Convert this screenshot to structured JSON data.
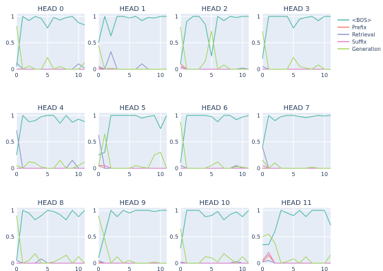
{
  "chart_data": {
    "type": "line",
    "x": [
      0,
      1,
      2,
      3,
      4,
      5,
      6,
      7,
      8,
      9,
      10,
      11
    ],
    "xticks": [
      0,
      5,
      10
    ],
    "yticks": [
      0,
      0.5,
      1
    ],
    "ytick_labels": [
      "0",
      "0.5",
      "1"
    ],
    "ylim": [
      -0.02,
      1.05
    ],
    "grid": true,
    "legend_position": "top-right",
    "series_styles": [
      {
        "name": "<BOS>",
        "color": "#4FB9A6"
      },
      {
        "name": "Prefix",
        "color": "#F0806A"
      },
      {
        "name": "Retrieval",
        "color": "#8E96C8"
      },
      {
        "name": "Suffix",
        "color": "#E680C8"
      },
      {
        "name": "Generation",
        "color": "#A6D65C"
      }
    ],
    "panels": [
      {
        "title": "HEAD 0",
        "series": [
          [
            0.05,
            1,
            0.92,
            1,
            0.96,
            0.78,
            0.98,
            0.93,
            0.98,
            1,
            0.88,
            0.84
          ],
          [
            0,
            0,
            0,
            0,
            0,
            0,
            0,
            0,
            0,
            0,
            0,
            0
          ],
          [
            0.12,
            0,
            0,
            0,
            0,
            0,
            0,
            0,
            0,
            0,
            0.1,
            0.02
          ],
          [
            0,
            0,
            0,
            0,
            0,
            0,
            0,
            0,
            0,
            0,
            0,
            0
          ],
          [
            0.82,
            0,
            0.06,
            0,
            0,
            0.22,
            0,
            0.05,
            0,
            0,
            0,
            0.12
          ]
        ]
      },
      {
        "title": "HEAD 1",
        "series": [
          [
            0.5,
            1,
            0.63,
            1,
            1,
            0.97,
            1,
            0.92,
            0.98,
            0.97,
            1,
            1
          ],
          [
            0.02,
            0,
            0,
            0,
            0,
            0,
            0,
            0,
            0,
            0,
            0,
            0
          ],
          [
            0.05,
            0,
            0.33,
            0,
            0,
            0,
            0,
            0.1,
            0,
            0,
            0,
            0
          ],
          [
            0,
            0,
            0,
            0,
            0,
            0,
            0,
            0,
            0,
            0,
            0,
            0
          ],
          [
            0.45,
            0,
            0.02,
            0,
            0,
            0,
            0,
            0,
            0,
            0,
            0,
            0
          ]
        ]
      },
      {
        "title": "HEAD 2",
        "series": [
          [
            0.1,
            0.9,
            1,
            1,
            0.85,
            0.25,
            1,
            0.92,
            1,
            0.98,
            1,
            1
          ],
          [
            0.1,
            0,
            0,
            0,
            0,
            0,
            0,
            0,
            0,
            0,
            0,
            0
          ],
          [
            0.05,
            0,
            0,
            0,
            0,
            0,
            0,
            0,
            0,
            0,
            0.02,
            0
          ],
          [
            0.02,
            0,
            0,
            0,
            0,
            0,
            0,
            0,
            0,
            0,
            0,
            0
          ],
          [
            0.8,
            0,
            0,
            0,
            0.15,
            0.72,
            0,
            0.08,
            0,
            0,
            0,
            0
          ]
        ]
      },
      {
        "title": "HEAD 3",
        "series": [
          [
            0.2,
            1,
            1,
            1,
            1,
            0.78,
            0.95,
            0.98,
            1,
            0.92,
            1,
            1
          ],
          [
            0,
            0,
            0,
            0,
            0,
            0,
            0,
            0,
            0,
            0,
            0,
            0
          ],
          [
            0.05,
            0,
            0,
            0,
            0,
            0,
            0,
            0,
            0,
            0,
            0,
            0
          ],
          [
            0,
            0,
            0,
            0,
            0,
            0,
            0,
            0,
            0,
            0,
            0,
            0
          ],
          [
            0.72,
            0,
            0,
            0,
            0,
            0.22,
            0.05,
            0.02,
            0,
            0.08,
            0,
            0
          ]
        ]
      },
      {
        "title": "HEAD 4",
        "series": [
          [
            0.25,
            1,
            0.88,
            0.9,
            0.98,
            1,
            1,
            0.85,
            1,
            0.87,
            0.93,
            0.88
          ],
          [
            0,
            0,
            0,
            0,
            0,
            0,
            0,
            0,
            0,
            0,
            0,
            0
          ],
          [
            0.72,
            0,
            0,
            0,
            0,
            0,
            0,
            0,
            0,
            0.15,
            0,
            0
          ],
          [
            0,
            0,
            0,
            0,
            0,
            0,
            0,
            0,
            0,
            0,
            0,
            0
          ],
          [
            0.05,
            0,
            0.12,
            0.1,
            0.02,
            0,
            0,
            0.15,
            0,
            0,
            0.05,
            0.12
          ]
        ]
      },
      {
        "title": "HEAD 5",
        "series": [
          [
            0.25,
            0.3,
            1,
            1,
            1,
            1,
            1,
            0.95,
            0.98,
            1,
            0.75,
            1
          ],
          [
            0.05,
            0,
            0,
            0,
            0,
            0,
            0,
            0,
            0,
            0,
            0,
            0
          ],
          [
            0.63,
            0,
            0,
            0,
            0,
            0,
            0,
            0,
            0,
            0,
            0,
            0
          ],
          [
            0.05,
            0.05,
            0,
            0,
            0,
            0,
            0,
            0,
            0,
            0,
            0,
            0
          ],
          [
            0.03,
            0.65,
            0,
            0,
            0,
            0,
            0.05,
            0.02,
            0,
            0.25,
            0.3,
            0
          ]
        ]
      },
      {
        "title": "HEAD 6",
        "series": [
          [
            0.1,
            1,
            1,
            1,
            1,
            0.98,
            0.88,
            1,
            1,
            0.92,
            0.97,
            1
          ],
          [
            0,
            0,
            0,
            0,
            0,
            0,
            0,
            0,
            0,
            0,
            0,
            0
          ],
          [
            0.05,
            0,
            0,
            0,
            0,
            0,
            0,
            0,
            0,
            0.05,
            0,
            0
          ],
          [
            0,
            0,
            0,
            0,
            0,
            0,
            0,
            0,
            0,
            0,
            0,
            0
          ],
          [
            0.88,
            0,
            0,
            0,
            0,
            0.05,
            0.12,
            0,
            0,
            0.03,
            0.02,
            0
          ]
        ]
      },
      {
        "title": "HEAD 7",
        "series": [
          [
            0.4,
            1,
            0.9,
            0.98,
            1,
            1,
            0.98,
            0.96,
            0.98,
            1,
            0.99,
            1
          ],
          [
            0,
            0,
            0,
            0,
            0,
            0,
            0,
            0,
            0,
            0,
            0,
            0
          ],
          [
            0.4,
            0,
            0,
            0,
            0,
            0,
            0,
            0,
            0,
            0,
            0,
            0
          ],
          [
            0.05,
            0,
            0,
            0,
            0,
            0,
            0,
            0,
            0,
            0,
            0,
            0
          ],
          [
            0.15,
            0,
            0.1,
            0,
            0,
            0,
            0,
            0,
            0.02,
            0,
            0,
            0
          ]
        ]
      },
      {
        "title": "HEAD 8",
        "series": [
          [
            0.05,
            1,
            0.95,
            0.82,
            0.9,
            1,
            0.98,
            0.92,
            0.82,
            1,
            0.88,
            1
          ],
          [
            0,
            0,
            0,
            0,
            0,
            0,
            0,
            0,
            0,
            0,
            0,
            0
          ],
          [
            0.05,
            0,
            0,
            0,
            0.08,
            0,
            0,
            0,
            0,
            0,
            0,
            0
          ],
          [
            0,
            0,
            0,
            0,
            0,
            0,
            0,
            0,
            0,
            0,
            0,
            0
          ],
          [
            0.9,
            0,
            0.05,
            0.18,
            0,
            0,
            0.02,
            0.08,
            0.15,
            0,
            0.12,
            0
          ]
        ]
      },
      {
        "title": "HEAD 9",
        "series": [
          [
            0.1,
            0.55,
            1,
            0.88,
            1,
            0.95,
            1,
            1,
            1,
            0.98,
            1,
            1
          ],
          [
            0,
            0,
            0,
            0,
            0,
            0,
            0,
            0,
            0,
            0,
            0,
            0
          ],
          [
            0.05,
            0,
            0,
            0,
            0,
            0,
            0,
            0,
            0,
            0,
            0,
            0
          ],
          [
            0.02,
            0,
            0,
            0,
            0,
            0,
            0,
            0,
            0,
            0,
            0,
            0
          ],
          [
            0.9,
            0.45,
            0,
            0.12,
            0,
            0.05,
            0,
            0,
            0,
            0.02,
            0,
            0
          ]
        ]
      },
      {
        "title": "HEAD 10",
        "series": [
          [
            0.28,
            1,
            1,
            1,
            0.88,
            0.9,
            0.98,
            0.82,
            0.92,
            0.97,
            0.88,
            1
          ],
          [
            0,
            0,
            0,
            0,
            0,
            0,
            0,
            0,
            0,
            0,
            0,
            0
          ],
          [
            0.02,
            0,
            0,
            0,
            0,
            0,
            0,
            0,
            0,
            0.03,
            0,
            0
          ],
          [
            0,
            0,
            0,
            0,
            0,
            0,
            0,
            0,
            0,
            0,
            0,
            0
          ],
          [
            0.65,
            0,
            0,
            0,
            0.12,
            0.1,
            0.02,
            0.18,
            0.08,
            0,
            0.12,
            0
          ]
        ]
      },
      {
        "title": "HEAD 11",
        "series": [
          [
            0.35,
            0.35,
            0.6,
            1,
            0.95,
            0.9,
            1,
            0.88,
            1,
            1,
            1,
            0.72
          ],
          [
            0.02,
            0.15,
            0,
            0,
            0,
            0,
            0,
            0,
            0,
            0,
            0,
            0
          ],
          [
            0.02,
            0.05,
            0,
            0,
            0,
            0,
            0,
            0,
            0,
            0,
            0,
            0
          ],
          [
            0.05,
            0.2,
            0,
            0,
            0,
            0,
            0,
            0,
            0,
            0,
            0,
            0
          ],
          [
            0.5,
            0.55,
            0.38,
            0,
            0.03,
            0.08,
            0,
            0.12,
            0,
            0,
            0,
            0.15
          ]
        ]
      }
    ]
  }
}
